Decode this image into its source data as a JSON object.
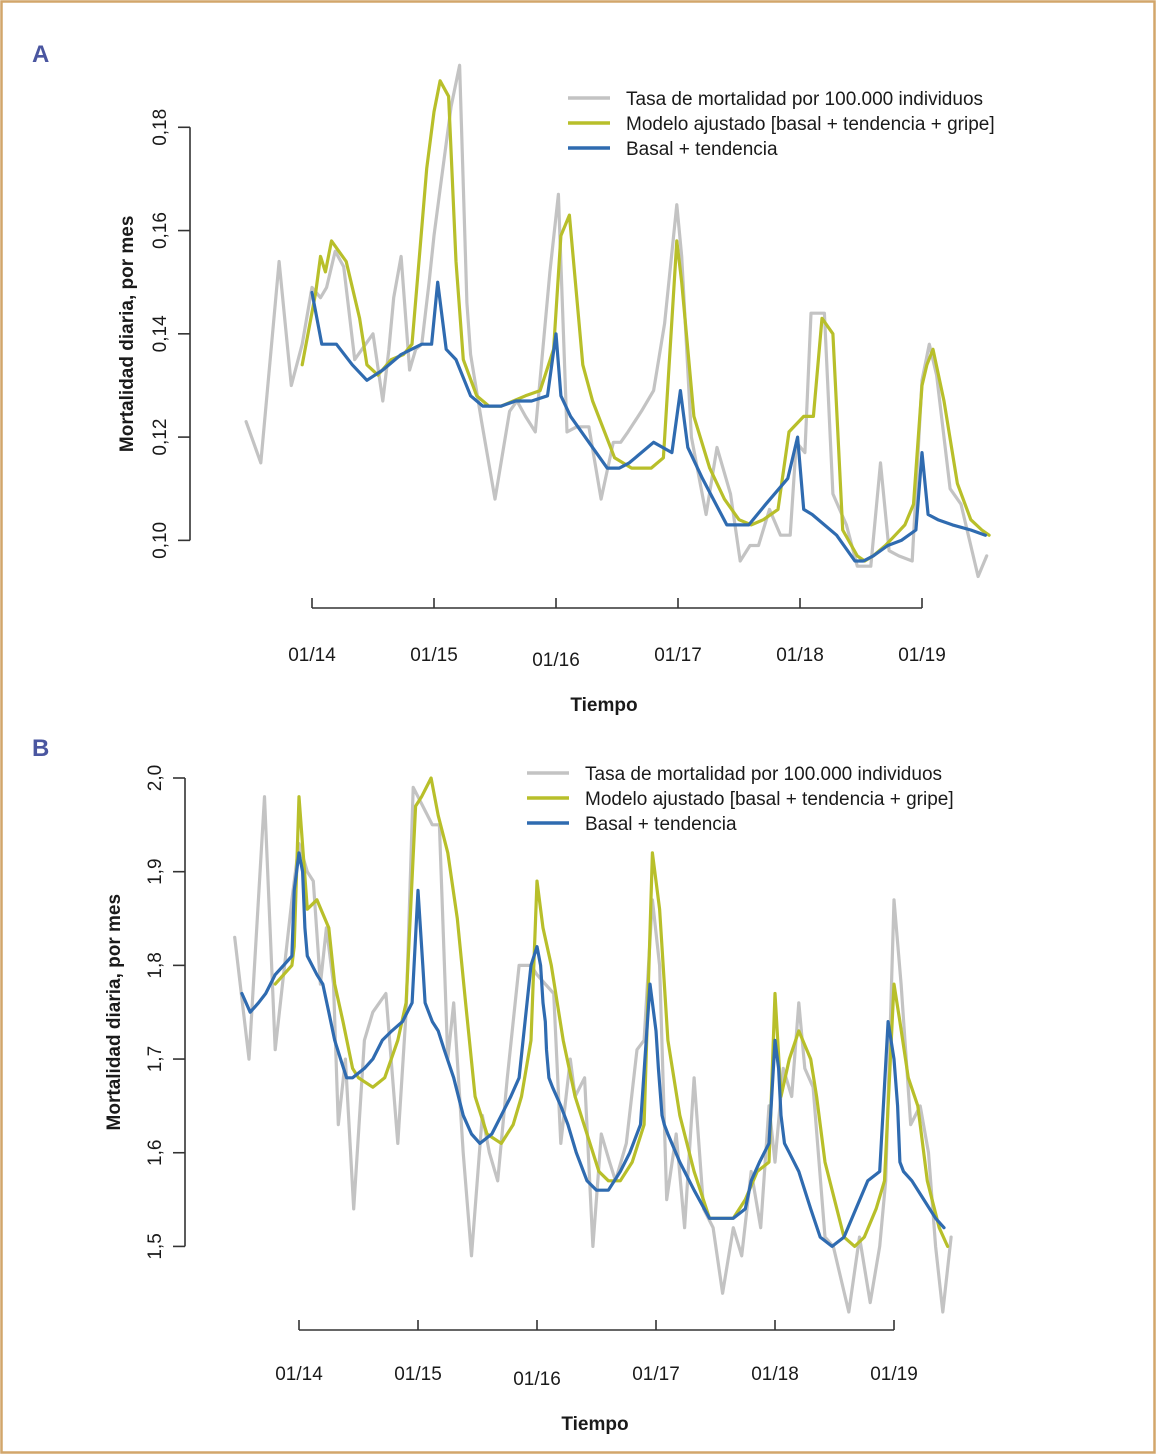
{
  "colors": {
    "border": "#d2a66b",
    "panel_letter": "#4a56a0",
    "gray_series": "#c3c3c3",
    "green_series": "#b8bf2a",
    "blue_series": "#2f6bb0"
  },
  "chart_data": [
    {
      "panel": "A",
      "type": "line",
      "title": "",
      "xlabel": "Tiempo",
      "ylabel": "Mortalidad diaria, por mes",
      "ylim": [
        0.09,
        0.194
      ],
      "xlim": [
        -0.55,
        5.55
      ],
      "yticks": [
        0.1,
        0.12,
        0.14,
        0.16,
        0.18
      ],
      "ytick_labels": [
        "0,10",
        "0,12",
        "0,14",
        "0,16",
        "0,18"
      ],
      "xticks": [
        0,
        1,
        2,
        3,
        4,
        5
      ],
      "xtick_labels": [
        "01/14",
        "01/15",
        "01/16",
        "01/17",
        "01/18",
        "01/19"
      ],
      "x_unit": "years since 01/2014",
      "legend_position": "top-right",
      "series": [
        {
          "name": "Tasa de mortalidad por 100.000 individuos",
          "color": "gray",
          "x": [
            -0.54,
            -0.42,
            -0.27,
            -0.17,
            -0.08,
            0.0,
            0.07,
            0.12,
            0.19,
            0.26,
            0.35,
            0.5,
            0.58,
            0.63,
            0.67,
            0.73,
            0.8,
            0.85,
            0.9,
            0.96,
            1.0,
            1.05,
            1.14,
            1.21,
            1.27,
            1.3,
            1.39,
            1.5,
            1.62,
            1.68,
            1.75,
            1.83,
            1.95,
            2.02,
            2.09,
            2.17,
            2.27,
            2.37,
            2.47,
            2.53,
            2.59,
            2.7,
            2.8,
            2.89,
            2.99,
            3.03,
            3.11,
            3.23,
            3.32,
            3.43,
            3.51,
            3.59,
            3.66,
            3.75,
            3.84,
            3.92,
            3.97,
            4.04,
            4.09,
            4.2,
            4.27,
            4.38,
            4.47,
            4.58,
            4.66,
            4.73,
            4.81,
            4.92,
            5.0,
            5.06,
            5.12,
            5.23,
            5.32,
            5.46,
            5.53
          ],
          "y": [
            0.123,
            0.115,
            0.154,
            0.13,
            0.138,
            0.149,
            0.147,
            0.149,
            0.156,
            0.153,
            0.135,
            0.14,
            0.127,
            0.137,
            0.147,
            0.155,
            0.133,
            0.137,
            0.138,
            0.15,
            0.159,
            0.168,
            0.184,
            0.192,
            0.146,
            0.136,
            0.123,
            0.108,
            0.125,
            0.127,
            0.124,
            0.121,
            0.152,
            0.167,
            0.121,
            0.122,
            0.122,
            0.108,
            0.119,
            0.119,
            0.121,
            0.125,
            0.129,
            0.142,
            0.165,
            0.155,
            0.12,
            0.105,
            0.118,
            0.109,
            0.096,
            0.099,
            0.099,
            0.106,
            0.101,
            0.101,
            0.119,
            0.117,
            0.144,
            0.144,
            0.109,
            0.103,
            0.095,
            0.095,
            0.115,
            0.098,
            0.097,
            0.096,
            0.131,
            0.138,
            0.132,
            0.11,
            0.107,
            0.093,
            0.097
          ]
        },
        {
          "name": "Modelo ajustado [basal + tendencia + gripe]",
          "color": "green",
          "x": [
            -0.08,
            0.03,
            0.07,
            0.11,
            0.16,
            0.22,
            0.28,
            0.39,
            0.45,
            0.54,
            0.65,
            0.75,
            0.82,
            0.88,
            0.94,
            1.0,
            1.05,
            1.12,
            1.18,
            1.24,
            1.35,
            1.45,
            1.55,
            1.65,
            1.75,
            1.87,
            1.98,
            2.04,
            2.11,
            2.22,
            2.3,
            2.48,
            2.62,
            2.78,
            2.88,
            2.99,
            3.03,
            3.13,
            3.26,
            3.38,
            3.5,
            3.6,
            3.7,
            3.82,
            3.91,
            4.03,
            4.11,
            4.18,
            4.27,
            4.35,
            4.47,
            4.53,
            4.6,
            4.7,
            4.78,
            4.86,
            4.93,
            5.0,
            5.04,
            5.09,
            5.18,
            5.29,
            5.4,
            5.49,
            5.55
          ],
          "y": [
            0.134,
            0.148,
            0.155,
            0.152,
            0.158,
            0.156,
            0.154,
            0.143,
            0.134,
            0.132,
            0.135,
            0.136,
            0.138,
            0.155,
            0.172,
            0.183,
            0.189,
            0.186,
            0.154,
            0.135,
            0.128,
            0.126,
            0.126,
            0.127,
            0.128,
            0.129,
            0.137,
            0.159,
            0.163,
            0.134,
            0.127,
            0.116,
            0.114,
            0.114,
            0.116,
            0.158,
            0.15,
            0.124,
            0.114,
            0.108,
            0.104,
            0.103,
            0.104,
            0.106,
            0.121,
            0.124,
            0.124,
            0.143,
            0.14,
            0.102,
            0.097,
            0.096,
            0.097,
            0.099,
            0.101,
            0.103,
            0.107,
            0.13,
            0.134,
            0.137,
            0.127,
            0.111,
            0.104,
            0.102,
            0.101
          ]
        },
        {
          "name": "Basal + tendencia",
          "color": "blue",
          "x": [
            0.0,
            0.08,
            0.2,
            0.33,
            0.45,
            0.58,
            0.73,
            0.9,
            0.98,
            1.03,
            1.1,
            1.18,
            1.3,
            1.4,
            1.55,
            1.67,
            1.8,
            1.93,
            2.0,
            2.04,
            2.12,
            2.27,
            2.42,
            2.52,
            2.6,
            2.8,
            2.95,
            3.02,
            3.08,
            3.2,
            3.4,
            3.58,
            3.72,
            3.9,
            3.98,
            4.03,
            4.1,
            4.3,
            4.45,
            4.52,
            4.6,
            4.72,
            4.83,
            4.95,
            5.0,
            5.05,
            5.13,
            5.25,
            5.4,
            5.52
          ],
          "y": [
            0.148,
            0.138,
            0.138,
            0.134,
            0.131,
            0.133,
            0.136,
            0.138,
            0.138,
            0.15,
            0.137,
            0.135,
            0.128,
            0.126,
            0.126,
            0.127,
            0.127,
            0.128,
            0.14,
            0.128,
            0.124,
            0.119,
            0.114,
            0.114,
            0.115,
            0.119,
            0.117,
            0.129,
            0.118,
            0.112,
            0.103,
            0.103,
            0.107,
            0.112,
            0.12,
            0.106,
            0.105,
            0.101,
            0.096,
            0.096,
            0.097,
            0.099,
            0.1,
            0.102,
            0.117,
            0.105,
            0.104,
            0.103,
            0.102,
            0.101
          ]
        }
      ]
    },
    {
      "panel": "B",
      "type": "line",
      "title": "",
      "xlabel": "Tiempo",
      "ylabel": "Mortalidad diaria, por mes",
      "ylim": [
        1.43,
        2.0
      ],
      "xlim": [
        -0.55,
        5.55
      ],
      "yticks": [
        1.5,
        1.6,
        1.7,
        1.8,
        1.9,
        2.0
      ],
      "ytick_labels": [
        "1,5",
        "1,6",
        "1,7",
        "1,8",
        "1,9",
        "2,0"
      ],
      "xticks": [
        0,
        1,
        2,
        3,
        4,
        5
      ],
      "xtick_labels": [
        "01/14",
        "01/15",
        "01/16",
        "01/17",
        "01/18",
        "01/19"
      ],
      "x_unit": "years since 01/2014",
      "legend_position": "top-right",
      "series": [
        {
          "name": "Tasa de mortalidad por 100.000 individuos",
          "color": "gray",
          "x": [
            -0.54,
            -0.42,
            -0.29,
            -0.2,
            -0.06,
            0.0,
            0.07,
            0.12,
            0.18,
            0.23,
            0.29,
            0.33,
            0.39,
            0.46,
            0.55,
            0.62,
            0.73,
            0.83,
            0.9,
            0.96,
            1.0,
            1.04,
            1.12,
            1.18,
            1.25,
            1.3,
            1.38,
            1.45,
            1.54,
            1.6,
            1.67,
            1.75,
            1.85,
            1.95,
            2.0,
            2.07,
            2.14,
            2.2,
            2.28,
            2.32,
            2.4,
            2.47,
            2.54,
            2.61,
            2.66,
            2.75,
            2.84,
            2.9,
            2.97,
            3.03,
            3.09,
            3.17,
            3.24,
            3.32,
            3.4,
            3.48,
            3.56,
            3.65,
            3.72,
            3.8,
            3.88,
            3.95,
            4.0,
            4.07,
            4.14,
            4.2,
            4.25,
            4.32,
            4.42,
            4.49,
            4.62,
            4.71,
            4.8,
            4.88,
            4.93,
            5.0,
            5.06,
            5.14,
            5.22,
            5.29,
            5.35,
            5.41,
            5.48
          ],
          "y": [
            1.83,
            1.7,
            1.98,
            1.71,
            1.87,
            1.93,
            1.9,
            1.89,
            1.78,
            1.84,
            1.78,
            1.63,
            1.7,
            1.54,
            1.72,
            1.75,
            1.77,
            1.61,
            1.75,
            1.99,
            1.98,
            1.97,
            1.95,
            1.95,
            1.7,
            1.76,
            1.6,
            1.49,
            1.64,
            1.6,
            1.57,
            1.68,
            1.8,
            1.8,
            1.79,
            1.78,
            1.77,
            1.61,
            1.7,
            1.66,
            1.68,
            1.5,
            1.62,
            1.59,
            1.57,
            1.61,
            1.71,
            1.72,
            1.87,
            1.8,
            1.55,
            1.62,
            1.52,
            1.68,
            1.54,
            1.52,
            1.45,
            1.52,
            1.49,
            1.58,
            1.52,
            1.65,
            1.59,
            1.69,
            1.66,
            1.76,
            1.69,
            1.67,
            1.51,
            1.5,
            1.43,
            1.51,
            1.44,
            1.5,
            1.57,
            1.87,
            1.78,
            1.63,
            1.65,
            1.6,
            1.5,
            1.43,
            1.51
          ],
          "note": ""
        },
        {
          "name": "Modelo ajustado [basal + tendencia + gripe]",
          "color": "green",
          "x": [
            -0.2,
            -0.06,
            -0.04,
            0.0,
            0.07,
            0.15,
            0.25,
            0.3,
            0.37,
            0.45,
            0.5,
            0.62,
            0.72,
            0.83,
            0.9,
            0.98,
            1.03,
            1.11,
            1.17,
            1.25,
            1.33,
            1.4,
            1.48,
            1.58,
            1.7,
            1.8,
            1.87,
            1.95,
            2.0,
            2.05,
            2.12,
            2.22,
            2.32,
            2.42,
            2.52,
            2.6,
            2.7,
            2.8,
            2.9,
            2.97,
            3.03,
            3.1,
            3.2,
            3.32,
            3.45,
            3.55,
            3.65,
            3.75,
            3.85,
            3.95,
            4.0,
            4.05,
            4.12,
            4.2,
            4.3,
            4.35,
            4.42,
            4.5,
            4.58,
            4.67,
            4.75,
            4.85,
            4.92,
            5.0,
            5.05,
            5.12,
            5.2,
            5.28,
            5.38,
            5.45
          ],
          "y": [
            1.78,
            1.8,
            1.82,
            1.98,
            1.86,
            1.87,
            1.84,
            1.78,
            1.74,
            1.69,
            1.68,
            1.67,
            1.68,
            1.72,
            1.76,
            1.97,
            1.98,
            2.0,
            1.96,
            1.92,
            1.85,
            1.76,
            1.66,
            1.62,
            1.61,
            1.63,
            1.66,
            1.72,
            1.89,
            1.84,
            1.8,
            1.72,
            1.66,
            1.62,
            1.58,
            1.57,
            1.57,
            1.59,
            1.63,
            1.92,
            1.86,
            1.72,
            1.64,
            1.58,
            1.53,
            1.53,
            1.53,
            1.55,
            1.58,
            1.59,
            1.77,
            1.66,
            1.7,
            1.73,
            1.7,
            1.66,
            1.59,
            1.55,
            1.51,
            1.5,
            1.51,
            1.54,
            1.57,
            1.78,
            1.74,
            1.68,
            1.65,
            1.57,
            1.52,
            1.5
          ]
        },
        {
          "name": "Basal + tendencia",
          "color": "blue",
          "x": [
            -0.48,
            -0.41,
            -0.34,
            -0.28,
            -0.2,
            -0.13,
            -0.06,
            -0.04,
            -0.02,
            0.0,
            0.03,
            0.05,
            0.07,
            0.15,
            0.2,
            0.25,
            0.3,
            0.35,
            0.4,
            0.45,
            0.55,
            0.62,
            0.7,
            0.78,
            0.87,
            0.95,
            1.0,
            1.02,
            1.04,
            1.06,
            1.12,
            1.17,
            1.22,
            1.3,
            1.38,
            1.45,
            1.52,
            1.62,
            1.7,
            1.78,
            1.85,
            1.95,
            2.0,
            2.03,
            2.05,
            2.07,
            2.08,
            2.1,
            2.13,
            2.2,
            2.26,
            2.33,
            2.42,
            2.5,
            2.6,
            2.7,
            2.78,
            2.87,
            2.95,
            3.0,
            3.02,
            3.05,
            3.07,
            3.1,
            3.2,
            3.32,
            3.45,
            3.55,
            3.65,
            3.75,
            3.8,
            3.87,
            3.95,
            4.0,
            4.03,
            4.05,
            4.08,
            4.12,
            4.2,
            4.3,
            4.38,
            4.48,
            4.58,
            4.68,
            4.78,
            4.88,
            4.95,
            5.0,
            5.03,
            5.05,
            5.08,
            5.15,
            5.25,
            5.35,
            5.42
          ],
          "y": [
            1.77,
            1.75,
            1.76,
            1.77,
            1.79,
            1.8,
            1.81,
            1.88,
            1.9,
            1.92,
            1.9,
            1.84,
            1.81,
            1.79,
            1.78,
            1.75,
            1.72,
            1.7,
            1.68,
            1.68,
            1.69,
            1.7,
            1.72,
            1.73,
            1.74,
            1.76,
            1.88,
            1.84,
            1.8,
            1.76,
            1.74,
            1.73,
            1.71,
            1.68,
            1.64,
            1.62,
            1.61,
            1.62,
            1.64,
            1.66,
            1.68,
            1.8,
            1.82,
            1.8,
            1.76,
            1.74,
            1.71,
            1.68,
            1.67,
            1.65,
            1.63,
            1.6,
            1.57,
            1.56,
            1.56,
            1.58,
            1.6,
            1.63,
            1.78,
            1.73,
            1.69,
            1.64,
            1.63,
            1.62,
            1.59,
            1.56,
            1.53,
            1.53,
            1.53,
            1.54,
            1.57,
            1.59,
            1.61,
            1.72,
            1.69,
            1.64,
            1.61,
            1.6,
            1.58,
            1.54,
            1.51,
            1.5,
            1.51,
            1.54,
            1.57,
            1.58,
            1.74,
            1.7,
            1.65,
            1.59,
            1.58,
            1.57,
            1.55,
            1.53,
            1.52
          ]
        }
      ]
    }
  ]
}
